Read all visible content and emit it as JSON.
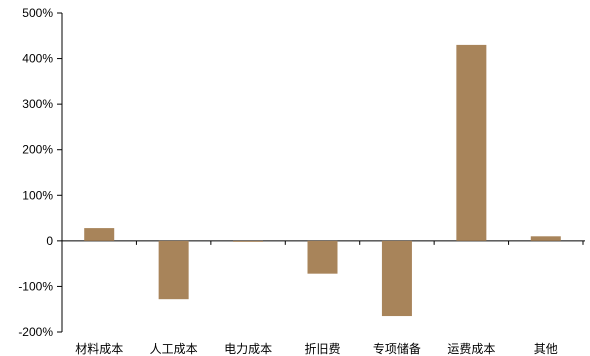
{
  "chart_data": {
    "type": "bar",
    "title": "",
    "xlabel": "",
    "ylabel": "",
    "categories": [
      "材料成本",
      "人工成本",
      "电力成本",
      "折旧费",
      "专项储备",
      "运费成本",
      "其他"
    ],
    "series": [
      {
        "values": [
          28,
          -128,
          -2,
          -72,
          -165,
          430,
          10
        ],
        "color": "#a8845a"
      }
    ],
    "ylim": [
      -200,
      500
    ],
    "yticks": [
      500,
      400,
      300,
      200,
      100,
      0,
      -100,
      -200
    ],
    "ytick_labels": [
      "500%",
      "400%",
      "300%",
      "200%",
      "100%",
      "0",
      "-100%",
      "-200%"
    ],
    "grid": false,
    "legend": "none"
  }
}
